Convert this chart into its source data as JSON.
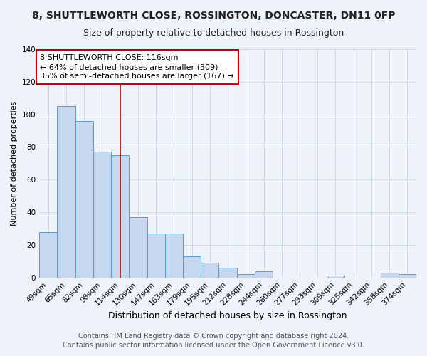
{
  "title": "8, SHUTTLEWORTH CLOSE, ROSSINGTON, DONCASTER, DN11 0FP",
  "subtitle": "Size of property relative to detached houses in Rossington",
  "xlabel": "Distribution of detached houses by size in Rossington",
  "ylabel": "Number of detached properties",
  "categories": [
    "49sqm",
    "65sqm",
    "82sqm",
    "98sqm",
    "114sqm",
    "130sqm",
    "147sqm",
    "163sqm",
    "179sqm",
    "195sqm",
    "212sqm",
    "228sqm",
    "244sqm",
    "260sqm",
    "277sqm",
    "293sqm",
    "309sqm",
    "325sqm",
    "342sqm",
    "358sqm",
    "374sqm"
  ],
  "values": [
    28,
    105,
    96,
    77,
    75,
    37,
    27,
    27,
    13,
    9,
    6,
    2,
    4,
    0,
    0,
    0,
    1,
    0,
    0,
    3,
    2
  ],
  "bar_color": "#c5d8f0",
  "bar_edge_color": "#5b9bd5",
  "vline_x_index": 4,
  "vline_color": "#cc0000",
  "annotation_text": "8 SHUTTLEWORTH CLOSE: 116sqm\n← 64% of detached houses are smaller (309)\n35% of semi-detached houses are larger (167) →",
  "annotation_box_color": "#ffffff",
  "annotation_box_edge_color": "#cc0000",
  "ylim": [
    0,
    140
  ],
  "yticks": [
    0,
    20,
    40,
    60,
    80,
    100,
    120,
    140
  ],
  "footer_line1": "Contains HM Land Registry data © Crown copyright and database right 2024.",
  "footer_line2": "Contains public sector information licensed under the Open Government Licence v3.0.",
  "background_color": "#eef2f9",
  "grid_color": "#d0d8e8",
  "title_fontsize": 10,
  "subtitle_fontsize": 9,
  "xlabel_fontsize": 9,
  "ylabel_fontsize": 8,
  "tick_fontsize": 7.5,
  "footer_fontsize": 7,
  "annotation_fontsize": 8
}
